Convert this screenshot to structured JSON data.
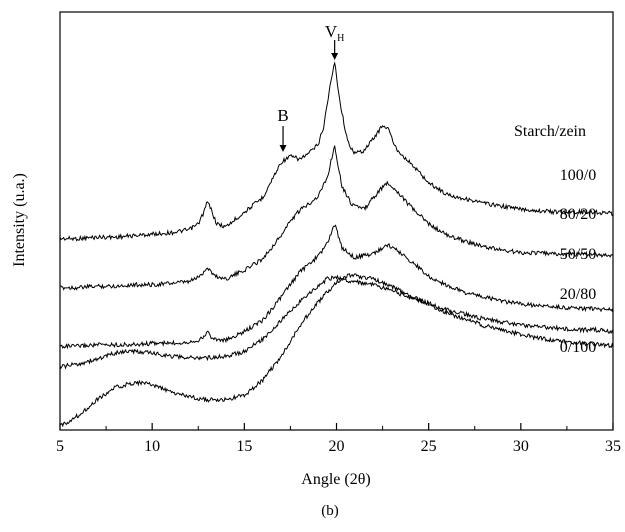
{
  "chart_data": {
    "type": "line",
    "title": "",
    "xlabel": "Angle (2θ)",
    "ylabel": "Intensity (u.a.)",
    "panel_label": "(b)",
    "xlim": [
      5,
      35
    ],
    "x_ticks": [
      5,
      10,
      15,
      20,
      25,
      30,
      35
    ],
    "y_ticks_shown": false,
    "grid": false,
    "line_color": "#000000",
    "legend_title": "Starch/zein",
    "annotations": [
      {
        "text": "B",
        "x": 17.1,
        "arrow": "down"
      },
      {
        "text": "V",
        "subscript": "H",
        "x": 19.9,
        "arrow": "down"
      }
    ],
    "series": [
      {
        "name": "100/0",
        "x": [
          5,
          6,
          7,
          8,
          9,
          10,
          11,
          12,
          12.5,
          12.8,
          13.0,
          13.2,
          13.5,
          14,
          15,
          16,
          16.5,
          17,
          17.5,
          18,
          18.5,
          19,
          19.3,
          19.6,
          19.9,
          20.2,
          20.6,
          21,
          21.5,
          22,
          22.5,
          22.8,
          23.2,
          23.8,
          24.5,
          25,
          26,
          27,
          28,
          29,
          30,
          31,
          32,
          33,
          34,
          35
        ],
        "y": [
          20,
          20,
          21,
          21,
          22,
          23,
          24,
          26,
          30,
          38,
          45,
          40,
          30,
          28,
          38,
          48,
          60,
          72,
          76,
          74,
          78,
          84,
          96,
          120,
          140,
          112,
          86,
          78,
          80,
          88,
          97,
          95,
          82,
          74,
          65,
          58,
          50,
          47,
          44,
          42,
          40,
          39,
          38,
          38,
          38,
          37
        ]
      },
      {
        "name": "80/20",
        "x": [
          5,
          6,
          7,
          8,
          9,
          10,
          11,
          12,
          12.6,
          13.0,
          13.4,
          14,
          15,
          16,
          17,
          17.5,
          18,
          19,
          19.5,
          19.9,
          20.3,
          20.8,
          21.5,
          22,
          22.7,
          23.2,
          24,
          25,
          26,
          27,
          28,
          29,
          30,
          31,
          32,
          33,
          34,
          35
        ],
        "y": [
          12,
          12,
          13,
          13,
          14,
          14,
          15,
          16,
          20,
          26,
          20,
          18,
          24,
          32,
          48,
          58,
          65,
          75,
          88,
          110,
          82,
          70,
          66,
          74,
          84,
          80,
          68,
          56,
          48,
          44,
          40,
          38,
          36,
          36,
          35,
          35,
          35,
          34
        ]
      },
      {
        "name": "50/50",
        "x": [
          5,
          6,
          7,
          8,
          9,
          10,
          11,
          12,
          12.7,
          13.0,
          13.3,
          14,
          15,
          16,
          17,
          18,
          19,
          19.5,
          19.9,
          20.3,
          21,
          22,
          22.8,
          23.5,
          24.5,
          25,
          26,
          27,
          28,
          29,
          30,
          31,
          32,
          33,
          34,
          35
        ],
        "y": [
          4,
          4,
          5,
          5,
          5,
          6,
          6,
          7,
          9,
          14,
          9,
          8,
          14,
          22,
          38,
          55,
          66,
          75,
          88,
          72,
          65,
          68,
          74,
          68,
          58,
          52,
          46,
          41,
          38,
          35,
          33,
          32,
          31,
          30,
          30,
          29
        ]
      },
      {
        "name": "20/80",
        "x": [
          5,
          6,
          7,
          8,
          8.5,
          9,
          10,
          11,
          12,
          13,
          14,
          15,
          16,
          17,
          18,
          19,
          19.5,
          20,
          20.5,
          21,
          22,
          23,
          24,
          25,
          26,
          27,
          28,
          29,
          30,
          31,
          32,
          33,
          34,
          35
        ],
        "y": [
          0,
          2,
          5,
          9,
          10,
          10,
          9,
          7,
          6,
          6,
          7,
          10,
          18,
          30,
          42,
          52,
          57,
          58,
          56,
          55,
          53,
          49,
          45,
          41,
          37,
          34,
          31,
          29,
          27,
          26,
          25,
          24,
          24,
          23
        ]
      },
      {
        "name": "0/100",
        "x": [
          5,
          6,
          7,
          8,
          9,
          9.5,
          10,
          11,
          12,
          13,
          14,
          15,
          16,
          17,
          18,
          19,
          20,
          20.5,
          21,
          22,
          23,
          24,
          25,
          26,
          27,
          28,
          29,
          30,
          31,
          32,
          33,
          34,
          35
        ],
        "y": [
          -75,
          -68,
          -58,
          -50,
          -47,
          -47,
          -48,
          -53,
          -56,
          -58,
          -58,
          -55,
          -45,
          -30,
          -10,
          5,
          18,
          22,
          22,
          20,
          15,
          9,
          4,
          -2,
          -6,
          -10,
          -13,
          -16,
          -18,
          -20,
          -21,
          -22,
          -23
        ]
      }
    ]
  }
}
